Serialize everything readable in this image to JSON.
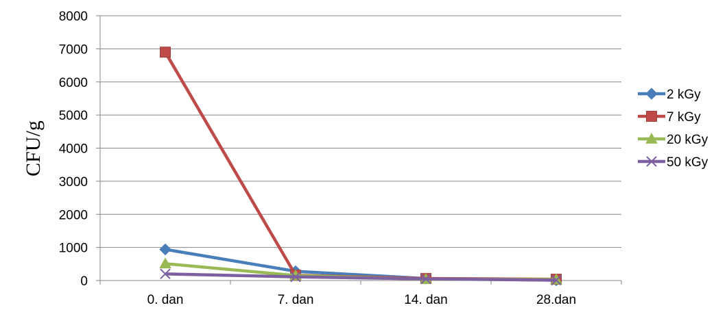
{
  "chart_data": {
    "type": "line",
    "title": "",
    "xlabel": "",
    "ylabel": "CFU/g",
    "categories": [
      "0. dan",
      "7. dan",
      "14. dan",
      "28.dan"
    ],
    "ylim": [
      0,
      8000
    ],
    "yticks": [
      0,
      1000,
      2000,
      3000,
      4000,
      5000,
      6000,
      7000,
      8000
    ],
    "grid": true,
    "legend_position": "right",
    "series": [
      {
        "name": "2 kGy",
        "values": [
          940,
          280,
          60,
          10
        ],
        "color": "#4a7ebb",
        "marker": "diamond"
      },
      {
        "name": "7 kGy",
        "values": [
          6900,
          160,
          60,
          40
        ],
        "color": "#be4b48",
        "marker": "square"
      },
      {
        "name": "20 kGy",
        "values": [
          510,
          150,
          40,
          30
        ],
        "color": "#98b954",
        "marker": "triangle"
      },
      {
        "name": "50 kGy",
        "values": [
          200,
          110,
          50,
          10
        ],
        "color": "#7d60a0",
        "marker": "x"
      }
    ]
  }
}
